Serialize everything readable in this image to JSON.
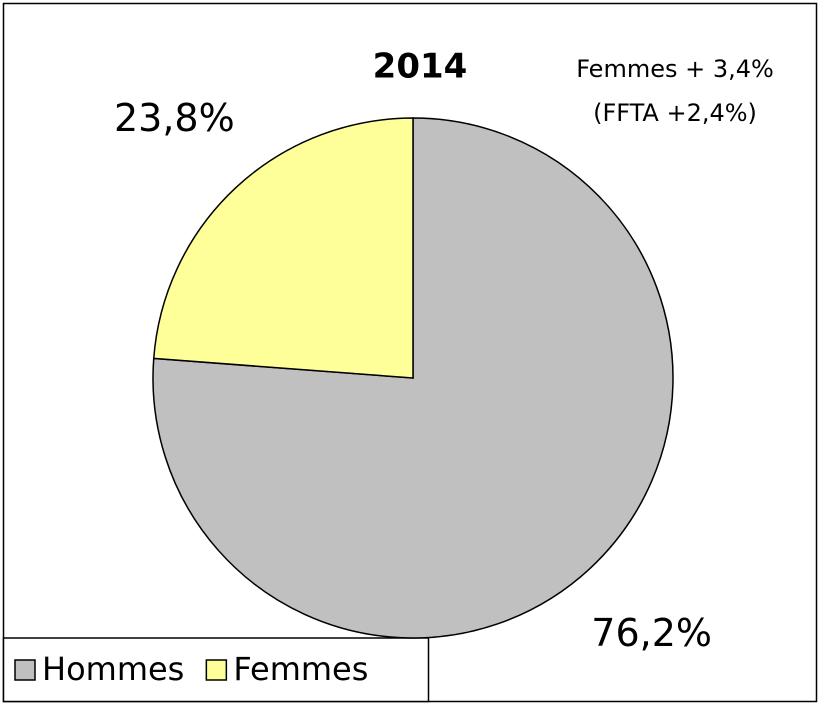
{
  "chart_data": {
    "type": "pie",
    "title": "2014",
    "annotations": [
      "Femmes + 3,4%",
      "(FFTA +2,4%)"
    ],
    "categories": [
      "Hommes",
      "Femmes"
    ],
    "values": [
      76.2,
      23.8
    ],
    "value_labels": [
      "76,2%",
      "23,8%"
    ],
    "colors": [
      "#c0c0c0",
      "#ffff99"
    ],
    "legend": "bottom-left"
  }
}
